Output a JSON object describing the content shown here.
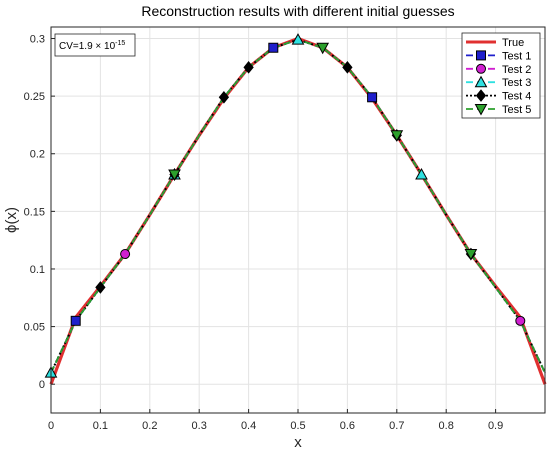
{
  "chart_data": {
    "type": "line",
    "title": "Reconstruction results with different initial guesses",
    "xlabel": "x",
    "ylabel": "ϕ(x)",
    "xlim": [
      0,
      1
    ],
    "ylim": [
      -0.025,
      0.31
    ],
    "grid": true,
    "legend_position": "top-right",
    "x_ticks": [
      0,
      0.1,
      0.2,
      0.3,
      0.4,
      0.5,
      0.6,
      0.7,
      0.8,
      0.9
    ],
    "x_tick_labels": [
      "0",
      "0.1",
      "0.2",
      "0.3",
      "0.4",
      "0.5",
      "0.6",
      "0.7",
      "0.8",
      "0.9"
    ],
    "y_ticks": [
      0,
      0.05,
      0.1,
      0.15,
      0.2,
      0.25,
      0.3
    ],
    "y_tick_labels": [
      "0",
      "0.05",
      "0.1",
      "0.15",
      "0.2",
      "0.25",
      "0.3"
    ],
    "annotation": {
      "prefix": "CV=1.9 × 10",
      "exponent": "-15"
    },
    "x": [
      0,
      0.05,
      0.1,
      0.15,
      0.2,
      0.25,
      0.3,
      0.35,
      0.4,
      0.45,
      0.5,
      0.55,
      0.6,
      0.65,
      0.7,
      0.75,
      0.8,
      0.85,
      0.9,
      0.95,
      1.0
    ],
    "series": [
      {
        "name": "True",
        "color": "#e03030",
        "style": "solid",
        "marker": "none",
        "values": [
          0.0,
          0.058,
          0.085,
          0.113,
          0.147,
          0.182,
          0.216,
          0.248,
          0.275,
          0.292,
          0.3,
          0.292,
          0.275,
          0.248,
          0.216,
          0.182,
          0.147,
          0.113,
          0.085,
          0.058,
          0.0
        ]
      },
      {
        "name": "Test 1",
        "color": "#1f1fcc",
        "style": "dashed",
        "marker": "square",
        "values": [
          0.01,
          0.055,
          0.084,
          0.113,
          0.147,
          0.182,
          0.216,
          0.249,
          0.275,
          0.292,
          0.299,
          0.292,
          0.275,
          0.249,
          0.216,
          0.182,
          0.147,
          0.113,
          0.084,
          0.055,
          0.01
        ]
      },
      {
        "name": "Test 2",
        "color": "#d01fd0",
        "style": "dashed",
        "marker": "circle",
        "values": [
          0.01,
          0.055,
          0.084,
          0.113,
          0.147,
          0.182,
          0.216,
          0.249,
          0.275,
          0.292,
          0.299,
          0.292,
          0.275,
          0.249,
          0.216,
          0.182,
          0.147,
          0.113,
          0.084,
          0.055,
          0.01
        ]
      },
      {
        "name": "Test 3",
        "color": "#2ee0e0",
        "style": "dashed",
        "marker": "triangle-up",
        "values": [
          0.01,
          0.055,
          0.084,
          0.113,
          0.147,
          0.182,
          0.216,
          0.249,
          0.275,
          0.292,
          0.299,
          0.292,
          0.275,
          0.249,
          0.216,
          0.182,
          0.147,
          0.113,
          0.084,
          0.055,
          0.01
        ]
      },
      {
        "name": "Test 4",
        "color": "#000000",
        "style": "dotted",
        "marker": "diamond",
        "values": [
          0.01,
          0.055,
          0.084,
          0.113,
          0.147,
          0.182,
          0.216,
          0.249,
          0.275,
          0.292,
          0.299,
          0.292,
          0.275,
          0.249,
          0.216,
          0.182,
          0.147,
          0.113,
          0.084,
          0.055,
          0.01
        ]
      },
      {
        "name": "Test 5",
        "color": "#2ca02c",
        "style": "dashed",
        "marker": "triangle-down",
        "values": [
          0.01,
          0.055,
          0.084,
          0.113,
          0.147,
          0.182,
          0.216,
          0.249,
          0.275,
          0.292,
          0.299,
          0.292,
          0.275,
          0.249,
          0.216,
          0.182,
          0.147,
          0.113,
          0.084,
          0.055,
          0.01
        ]
      }
    ],
    "marker_points": {
      "Test 1": [
        [
          0.05,
          0.055
        ],
        [
          0.45,
          0.292
        ],
        [
          0.65,
          0.249
        ]
      ],
      "Test 2": [
        [
          0.15,
          0.113
        ],
        [
          0.95,
          0.055
        ]
      ],
      "Test 3": [
        [
          0.0,
          0.01
        ],
        [
          0.25,
          0.182
        ],
        [
          0.5,
          0.299
        ],
        [
          0.75,
          0.182
        ]
      ],
      "Test 4": [
        [
          0.1,
          0.084
        ],
        [
          0.25,
          0.182
        ],
        [
          0.35,
          0.249
        ],
        [
          0.4,
          0.275
        ],
        [
          0.6,
          0.275
        ],
        [
          0.7,
          0.216
        ],
        [
          0.85,
          0.113
        ]
      ],
      "Test 5": [
        [
          0.25,
          0.182
        ],
        [
          0.55,
          0.292
        ],
        [
          0.7,
          0.216
        ],
        [
          0.85,
          0.113
        ]
      ]
    }
  }
}
